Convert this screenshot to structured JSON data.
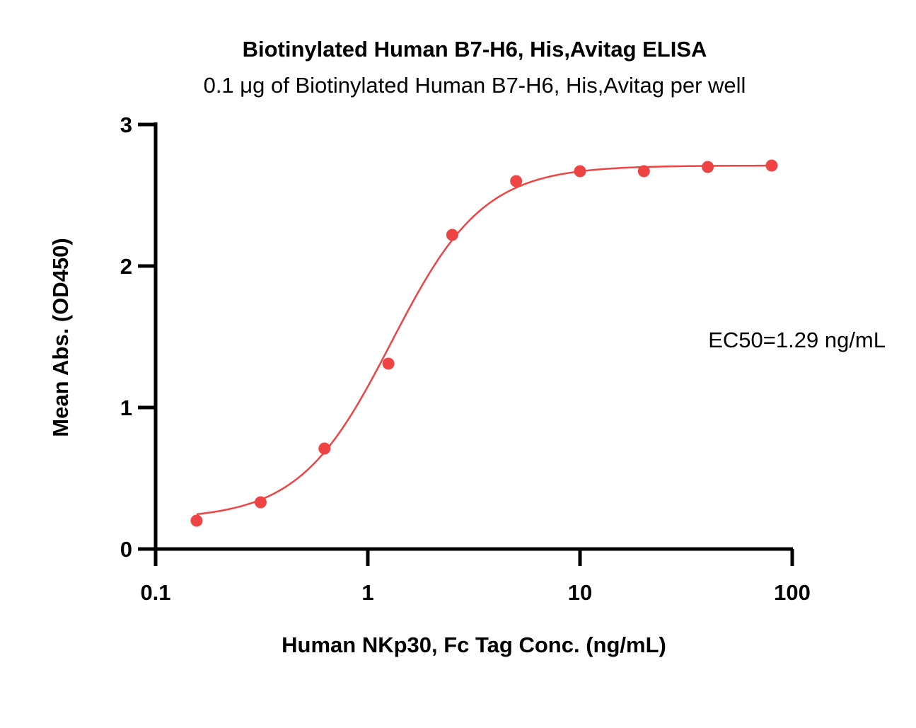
{
  "chart_data": {
    "type": "scatter",
    "title": "Biotinylated Human B7-H6, His,Avitag ELISA",
    "subtitle": "0.1 μg of Biotinylated Human B7-H6, His,Avitag per well",
    "xlabel": "Human NKp30, Fc Tag Conc. (ng/mL)",
    "ylabel": "Mean Abs. (OD450)",
    "x_scale": "log",
    "xlim": [
      0.1,
      100
    ],
    "ylim": [
      0,
      3
    ],
    "x_ticks": [
      0.1,
      1,
      10,
      100
    ],
    "x_tick_labels": [
      "0.1",
      "1",
      "10",
      "100"
    ],
    "y_ticks": [
      0,
      1,
      2,
      3
    ],
    "y_tick_labels": [
      "0",
      "1",
      "2",
      "3"
    ],
    "grid": false,
    "legend": "none",
    "color": "#ee4444",
    "series": [
      {
        "x": [
          0.156,
          0.3125,
          0.625,
          1.25,
          2.5,
          5,
          10,
          20,
          40,
          80
        ],
        "y": [
          0.2,
          0.33,
          0.71,
          1.31,
          2.22,
          2.6,
          2.67,
          2.67,
          2.7,
          2.71
        ]
      }
    ],
    "fit": {
      "model": "4PL",
      "bottom": 0.21,
      "top": 2.71,
      "ec50": 1.29,
      "hill": 2.0
    },
    "annotation": "EC50=1.29 ng/mL"
  }
}
